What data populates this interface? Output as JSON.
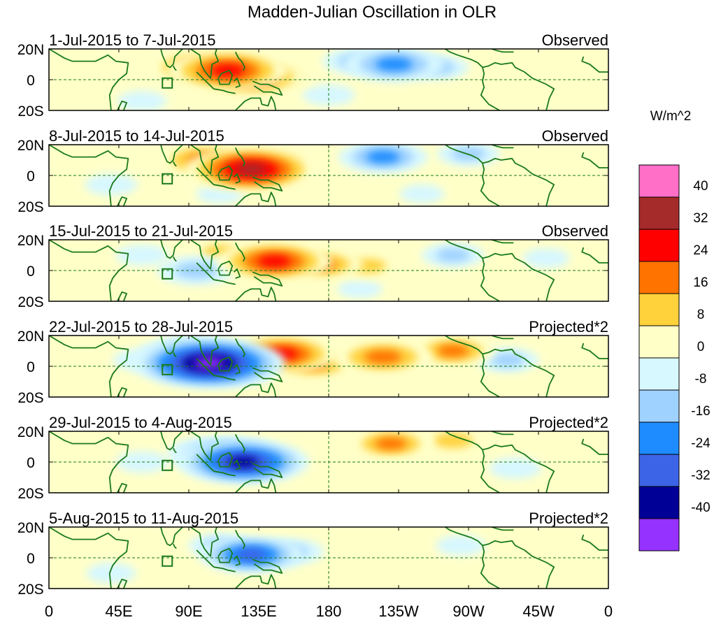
{
  "chart_data": {
    "type": "heatmap",
    "title": "Madden-Julian Oscillation in OLR",
    "units": "W/m^2",
    "x_ticks": [
      "0",
      "45E",
      "90E",
      "135E",
      "180",
      "135W",
      "90W",
      "45W",
      "0"
    ],
    "x_range_deg_east": [
      0,
      360
    ],
    "y_ticks": [
      "20N",
      "0",
      "20S"
    ],
    "y_range_deg": [
      -20,
      20
    ],
    "colorbar": {
      "labels": [
        "40",
        "32",
        "24",
        "16",
        "8",
        "0",
        "-8",
        "-16",
        "-24",
        "-32",
        "-40"
      ],
      "levels": [
        40,
        32,
        24,
        16,
        8,
        0,
        -8,
        -16,
        -24,
        -32,
        -40
      ],
      "colors": [
        "#ff6ec7",
        "#a52a2a",
        "#ff0000",
        "#ff7300",
        "#ffd23c",
        "#ffffc8",
        "#d7f8ff",
        "#a0d2ff",
        "#1e8cff",
        "#3c64e6",
        "#000096",
        "#9632ff"
      ]
    },
    "panels": [
      {
        "period": "1-Jul-2015 to 7-Jul-2015",
        "kind": "Observed",
        "anomalies": [
          {
            "lon": 95,
            "lat": 8,
            "value": 24
          },
          {
            "lon": 115,
            "lat": 6,
            "value": 32
          },
          {
            "lon": 130,
            "lat": 2,
            "value": 28
          },
          {
            "lon": 150,
            "lat": 2,
            "value": 12
          },
          {
            "lon": 222,
            "lat": 10,
            "value": -24
          },
          {
            "lon": 198,
            "lat": 12,
            "value": -12
          },
          {
            "lon": 250,
            "lat": 8,
            "value": -10
          },
          {
            "lon": 40,
            "lat": 8,
            "value": 6
          },
          {
            "lon": 315,
            "lat": 4,
            "value": 8
          },
          {
            "lon": 60,
            "lat": -14,
            "value": -5
          },
          {
            "lon": 180,
            "lat": -10,
            "value": -6
          }
        ]
      },
      {
        "period": "8-Jul-2015 to 14-Jul-2015",
        "kind": "Observed",
        "anomalies": [
          {
            "lon": 100,
            "lat": 10,
            "value": 22
          },
          {
            "lon": 130,
            "lat": 4,
            "value": 36
          },
          {
            "lon": 150,
            "lat": 8,
            "value": 14
          },
          {
            "lon": 215,
            "lat": 12,
            "value": -20
          },
          {
            "lon": 270,
            "lat": 14,
            "value": -10
          },
          {
            "lon": 300,
            "lat": 12,
            "value": 4
          },
          {
            "lon": 40,
            "lat": -6,
            "value": -6
          },
          {
            "lon": 110,
            "lat": -12,
            "value": -4
          },
          {
            "lon": 240,
            "lat": -12,
            "value": -3
          }
        ]
      },
      {
        "period": "15-Jul-2015 to 21-Jul-2015",
        "kind": "Observed",
        "anomalies": [
          {
            "lon": 110,
            "lat": 12,
            "value": 10
          },
          {
            "lon": 145,
            "lat": 6,
            "value": 30
          },
          {
            "lon": 175,
            "lat": 4,
            "value": 18
          },
          {
            "lon": 205,
            "lat": 3,
            "value": 12
          },
          {
            "lon": 95,
            "lat": 0,
            "value": -16
          },
          {
            "lon": 60,
            "lat": 10,
            "value": -6
          },
          {
            "lon": 260,
            "lat": 10,
            "value": -10
          },
          {
            "lon": 320,
            "lat": 8,
            "value": -4
          },
          {
            "lon": 200,
            "lat": -12,
            "value": -3
          }
        ]
      },
      {
        "period": "22-Jul-2015 to 28-Jul-2015",
        "kind": "Projected*2",
        "anomalies": [
          {
            "lon": 103,
            "lat": 2,
            "value": -44
          },
          {
            "lon": 90,
            "lat": 8,
            "value": -24
          },
          {
            "lon": 120,
            "lat": -2,
            "value": -16
          },
          {
            "lon": 60,
            "lat": 4,
            "value": -8
          },
          {
            "lon": 150,
            "lat": 8,
            "value": 28
          },
          {
            "lon": 170,
            "lat": 2,
            "value": 20
          },
          {
            "lon": 215,
            "lat": 6,
            "value": 24
          },
          {
            "lon": 260,
            "lat": 10,
            "value": 18
          },
          {
            "lon": 295,
            "lat": 4,
            "value": -10
          },
          {
            "lon": 350,
            "lat": 15,
            "value": 8
          }
        ]
      },
      {
        "period": "29-Jul-2015 to 4-Aug-2015",
        "kind": "Projected*2",
        "anomalies": [
          {
            "lon": 115,
            "lat": 4,
            "value": -28
          },
          {
            "lon": 125,
            "lat": 0,
            "value": -36
          },
          {
            "lon": 100,
            "lat": 6,
            "value": -14
          },
          {
            "lon": 60,
            "lat": 0,
            "value": -6
          },
          {
            "lon": 220,
            "lat": 12,
            "value": 18
          },
          {
            "lon": 260,
            "lat": 14,
            "value": 14
          },
          {
            "lon": 175,
            "lat": -8,
            "value": 5
          },
          {
            "lon": 300,
            "lat": -4,
            "value": -6
          },
          {
            "lon": 355,
            "lat": 18,
            "value": 8
          }
        ]
      },
      {
        "period": "5-Aug-2015 to 11-Aug-2015",
        "kind": "Projected*2",
        "anomalies": [
          {
            "lon": 130,
            "lat": 2,
            "value": -26
          },
          {
            "lon": 110,
            "lat": 8,
            "value": -10
          },
          {
            "lon": 155,
            "lat": 4,
            "value": -12
          },
          {
            "lon": 70,
            "lat": 0,
            "value": 4
          },
          {
            "lon": 210,
            "lat": 4,
            "value": 5
          },
          {
            "lon": 265,
            "lat": 8,
            "value": -5
          },
          {
            "lon": 40,
            "lat": -10,
            "value": -5
          }
        ]
      }
    ]
  }
}
